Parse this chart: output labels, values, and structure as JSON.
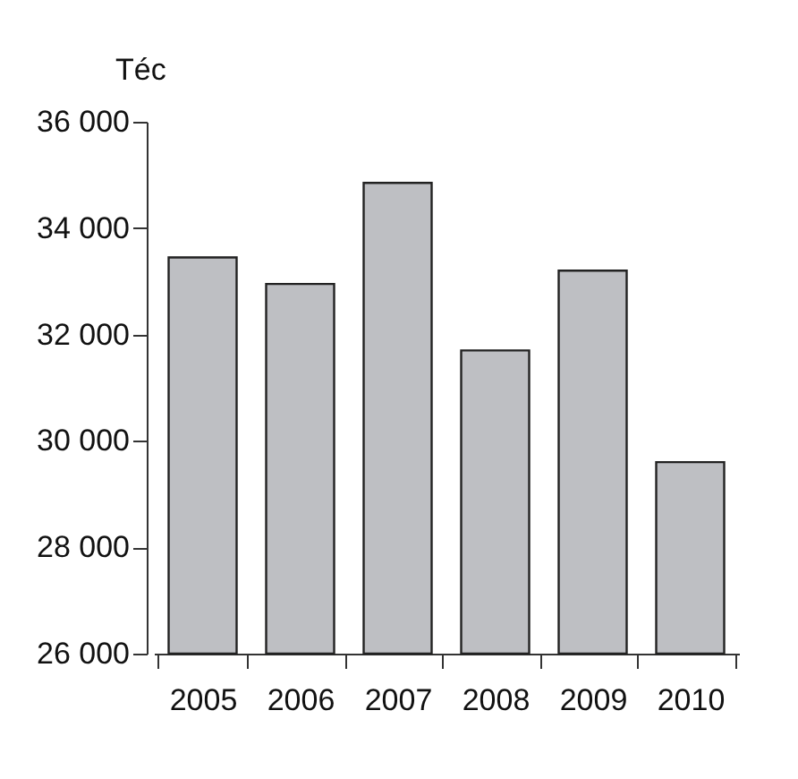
{
  "chart_data": {
    "type": "bar",
    "ylabel": "Téc",
    "categories": [
      "2005",
      "2006",
      "2007",
      "2008",
      "2009",
      "2010"
    ],
    "values": [
      33450,
      32950,
      34850,
      31700,
      33200,
      29600
    ],
    "color": "#bebfc3",
    "ylim": [
      26000,
      36000
    ],
    "yticks": [
      {
        "value": 26000,
        "label": "26 000"
      },
      {
        "value": 28000,
        "label": "28 000"
      },
      {
        "value": 30000,
        "label": "30 000"
      },
      {
        "value": 32000,
        "label": "32 000"
      },
      {
        "value": 34000,
        "label": "34 000"
      },
      {
        "value": 36000,
        "label": "36 000"
      }
    ],
    "grid": false
  }
}
